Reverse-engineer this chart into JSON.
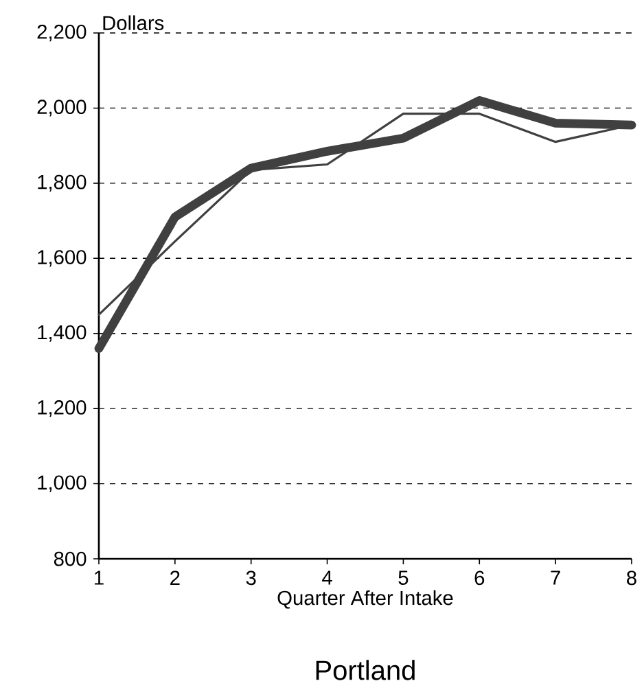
{
  "chart_data": {
    "type": "line",
    "title": "Portland",
    "xlabel": "Quarter After Intake",
    "ylabel": "Dollars",
    "x": [
      1,
      2,
      3,
      4,
      5,
      6,
      7,
      8
    ],
    "series": [
      {
        "color": "#404040",
        "values": [
          1450,
          1645,
          1835,
          1850,
          1985,
          1985,
          1910,
          1955
        ]
      },
      {
        "color": "#404040",
        "values": [
          1360,
          1710,
          1840,
          1885,
          1920,
          2020,
          1960,
          1955
        ]
      }
    ],
    "xlim": [
      1,
      8
    ],
    "ylim": [
      800,
      2200
    ],
    "xticks": [
      1,
      2,
      3,
      4,
      5,
      6,
      7,
      8
    ],
    "yticks": [
      {
        "value": 800,
        "label": "800"
      },
      {
        "value": 1000,
        "label": "1,000"
      },
      {
        "value": 1200,
        "label": "1,200"
      },
      {
        "value": 1400,
        "label": "1,400"
      },
      {
        "value": 1600,
        "label": "1,600"
      },
      {
        "value": 1800,
        "label": "1,800"
      },
      {
        "value": 2000,
        "label": "2,000"
      },
      {
        "value": 2200,
        "label": "2,200"
      }
    ],
    "grid": "y",
    "marker": "none",
    "line_style": "solid"
  }
}
